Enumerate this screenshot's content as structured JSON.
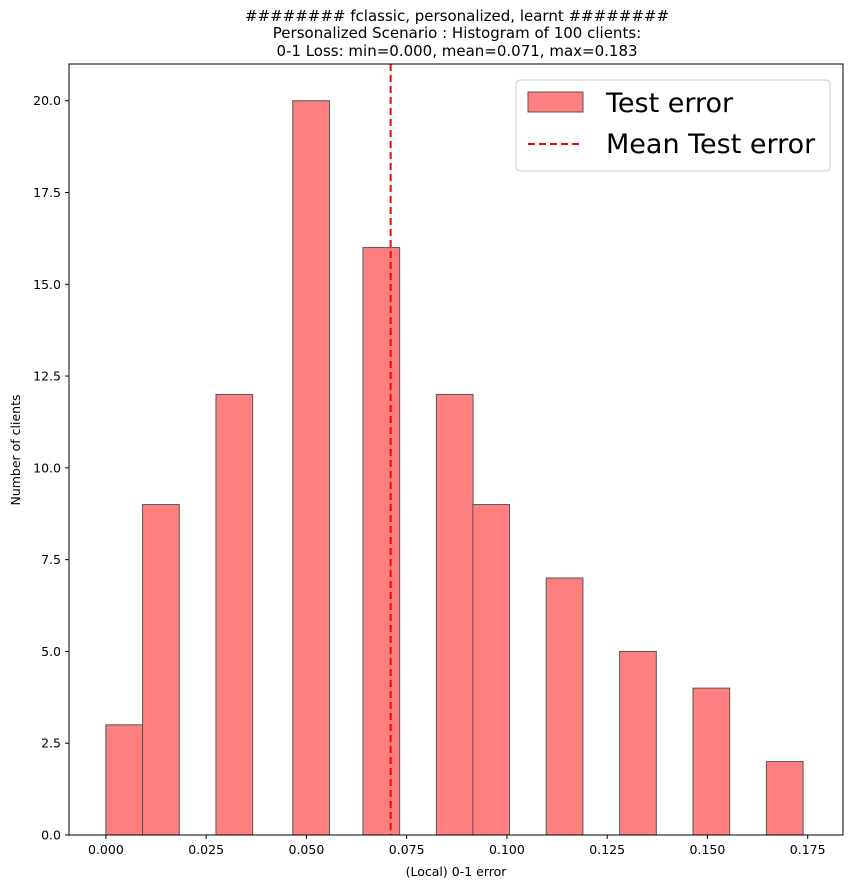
{
  "chart_data": {
    "type": "bar",
    "title_lines": [
      "######## fclassic, personalized, learnt ########",
      "Personalized Scenario : Histogram of 100 clients:",
      "0-1 Loss: min=0.000, mean=0.071, max=0.183"
    ],
    "xlabel": "(Local) 0-1 error",
    "ylabel": "Number of clients",
    "xlim": [
      -0.0092,
      0.1838
    ],
    "ylim": [
      0,
      21
    ],
    "xticks": [
      "0.000",
      "0.025",
      "0.050",
      "0.075",
      "0.100",
      "0.125",
      "0.150",
      "0.175"
    ],
    "xtick_values": [
      0,
      0.025,
      0.05,
      0.075,
      0.1,
      0.125,
      0.15,
      0.175
    ],
    "yticks": [
      "0.0",
      "2.5",
      "5.0",
      "7.5",
      "10.0",
      "12.5",
      "15.0",
      "17.5",
      "20.0"
    ],
    "ytick_values": [
      0,
      2.5,
      5,
      7.5,
      10,
      12.5,
      15,
      17.5,
      20
    ],
    "bin_width": 0.00915,
    "series": [
      {
        "name": "Test error",
        "color": "#ff7f7f",
        "edge_color": "#555555",
        "bins": [
          {
            "x": 0.0,
            "count": 3
          },
          {
            "x": 0.00915,
            "count": 9
          },
          {
            "x": 0.02745,
            "count": 12
          },
          {
            "x": 0.0466,
            "count": 20
          },
          {
            "x": 0.0641,
            "count": 16
          },
          {
            "x": 0.0824,
            "count": 12
          },
          {
            "x": 0.0915,
            "count": 9
          },
          {
            "x": 0.1098,
            "count": 7
          },
          {
            "x": 0.1281,
            "count": 5
          },
          {
            "x": 0.1464,
            "count": 4
          },
          {
            "x": 0.1647,
            "count": 2
          }
        ]
      }
    ],
    "mean_line": {
      "name": "Mean Test error",
      "x": 0.071,
      "color": "#ff0000"
    },
    "legend_position": "top-right",
    "grid": false
  }
}
